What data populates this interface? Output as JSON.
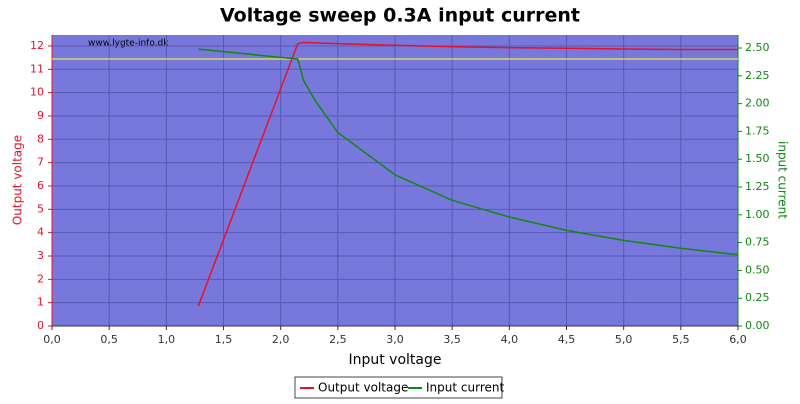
{
  "chart_data": {
    "type": "line",
    "title": "Voltage sweep 0.3A input current",
    "watermark": "www.lygte-info.dk",
    "x_label": "Input voltage",
    "y_label": "Output voltage",
    "y2_label": "input current",
    "x": [
      1.28,
      2.15,
      2.2,
      2.3,
      2.5,
      3.0,
      3.5,
      4.0,
      4.5,
      5.0,
      5.5,
      6.0
    ],
    "series": [
      {
        "name": "Output voltage",
        "color": "#e8102a",
        "values": [
          0.85,
          12.1,
          12.15,
          12.13,
          12.1,
          12.03,
          11.97,
          11.93,
          11.9,
          11.87,
          11.85,
          11.85
        ]
      },
      {
        "name": "Input current",
        "color": "#118811",
        "axis": "y2",
        "values": [
          2.49,
          2.4,
          2.21,
          2.03,
          1.74,
          1.36,
          1.13,
          0.98,
          0.86,
          0.77,
          0.7,
          0.64
        ]
      }
    ],
    "reference_line": {
      "value": 11.44,
      "color": "#e8e84a"
    },
    "xlim": [
      0,
      6
    ],
    "xticks": [
      {
        "value": 0,
        "label": "0,0"
      },
      {
        "value": 0.5,
        "label": "0,5"
      },
      {
        "value": 1,
        "label": "1,0"
      },
      {
        "value": 1.5,
        "label": "1,5"
      },
      {
        "value": 2,
        "label": "2,0"
      },
      {
        "value": 2.5,
        "label": "2,5"
      },
      {
        "value": 3,
        "label": "3,0"
      },
      {
        "value": 3.5,
        "label": "3,5"
      },
      {
        "value": 4,
        "label": "4,0"
      },
      {
        "value": 4.5,
        "label": "4,5"
      },
      {
        "value": 5,
        "label": "5,0"
      },
      {
        "value": 5.5,
        "label": "5,5"
      },
      {
        "value": 6,
        "label": "6,0"
      }
    ],
    "ylim": [
      0,
      12.47
    ],
    "yticks": [
      0,
      1,
      2,
      3,
      4,
      5,
      6,
      7,
      8,
      9,
      10,
      11,
      12
    ],
    "y2lim": [
      0,
      2.617
    ],
    "y2ticks": [
      {
        "value": 0,
        "label": "0.00"
      },
      {
        "value": 0.25,
        "label": "0.25"
      },
      {
        "value": 0.5,
        "label": "0.50"
      },
      {
        "value": 0.75,
        "label": "0.75"
      },
      {
        "value": 1,
        "label": "1.00"
      },
      {
        "value": 1.25,
        "label": "1.25"
      },
      {
        "value": 1.5,
        "label": "1.50"
      },
      {
        "value": 1.75,
        "label": "1.75"
      },
      {
        "value": 2,
        "label": "2.00"
      },
      {
        "value": 2.25,
        "label": "2.25"
      },
      {
        "value": 2.5,
        "label": "2.50"
      }
    ],
    "grid": true,
    "legend": "bottom"
  }
}
